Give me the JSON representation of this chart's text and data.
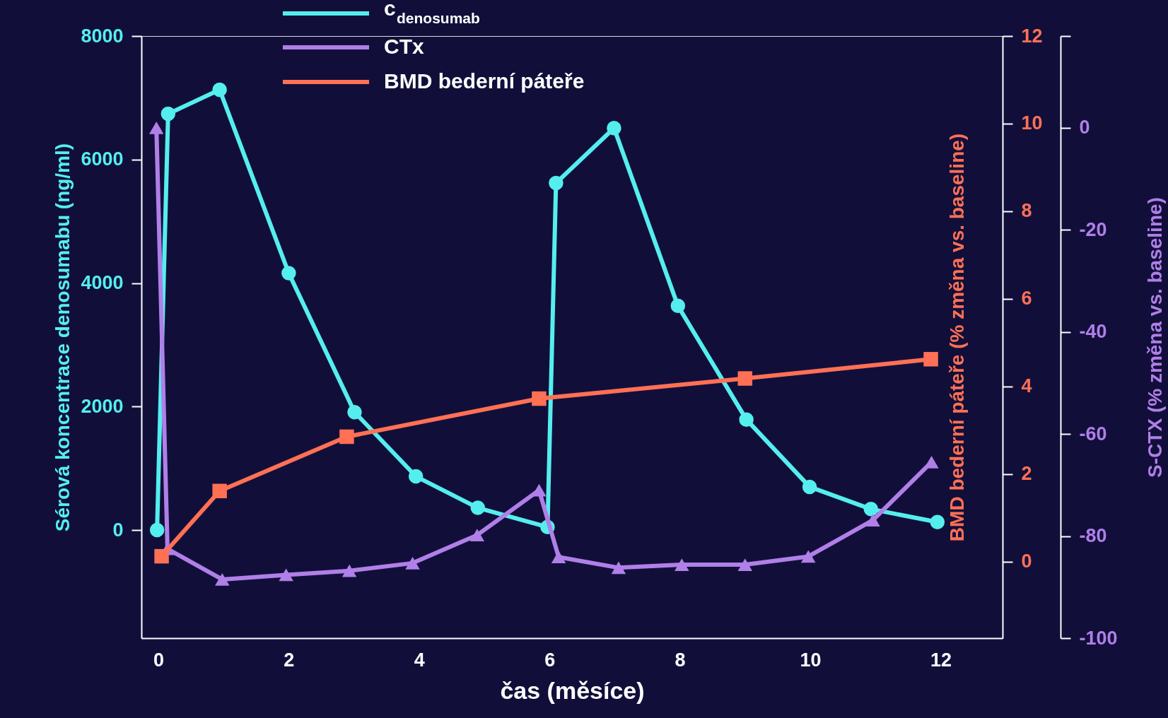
{
  "chart_data": {
    "type": "line",
    "xlabel": "čas (měsíce)",
    "ylabel": "Sérová koncentrace denosumabu (ng/ml)",
    "y2label": "BMD bederní páteře (% změna vs. baseline)",
    "y3label": "S-CTX (% změna vs. baseline)",
    "xlim": [
      -0.26,
      12.95
    ],
    "xticks": [
      0,
      2,
      4,
      6,
      8,
      10,
      12
    ],
    "ylim": [
      -1750,
      8000
    ],
    "yticks": [
      0,
      2000,
      4000,
      6000,
      8000
    ],
    "y2lim": [
      -1.75,
      12
    ],
    "y2ticks": [
      0,
      2,
      4,
      6,
      8,
      10,
      12
    ],
    "y3lim": [
      -100,
      18
    ],
    "y3ticks": [
      -100,
      -80,
      -60,
      -40,
      -20,
      0,
      {
        "value": 18,
        "label": null
      }
    ],
    "legend": "top",
    "grid": false,
    "line_style": "solid",
    "series": [
      {
        "name": "c$_{denosumab}$",
        "color": "#55eeee",
        "marker": "circle",
        "axis": "y",
        "x": [
          -0.02,
          0.15,
          0.94,
          2.0,
          3.01,
          3.95,
          4.9,
          5.97,
          6.1,
          6.99,
          7.97,
          9.02,
          9.99,
          10.93,
          11.95
        ],
        "values": [
          0,
          6740,
          7130,
          4160,
          1910,
          870,
          360,
          50,
          5620,
          6510,
          3630,
          1790,
          700,
          340,
          130
        ]
      },
      {
        "name": "CTx",
        "color": "#b07fe8",
        "marker": "triangle",
        "axis": "y3",
        "x": [
          -0.03,
          0.14,
          0.98,
          1.96,
          2.93,
          3.9,
          4.89,
          5.84,
          6.14,
          7.06,
          8.03,
          9.0,
          9.97,
          10.96,
          11.86
        ],
        "values": [
          0,
          -82.5,
          -88.5,
          -87.6,
          -86.8,
          -85.3,
          -79.8,
          -71.0,
          -84.1,
          -86.2,
          -85.6,
          -85.6,
          -84.0,
          -76.9,
          -65.5
        ]
      },
      {
        "name": "BMD bederní páteře",
        "color": "#ff7055",
        "marker": "square",
        "axis": "y2",
        "x": [
          0.05,
          0.94,
          2.89,
          5.84,
          9.0,
          11.85
        ],
        "values": [
          0.12,
          1.61,
          2.85,
          3.72,
          4.18,
          4.62
        ]
      }
    ]
  }
}
